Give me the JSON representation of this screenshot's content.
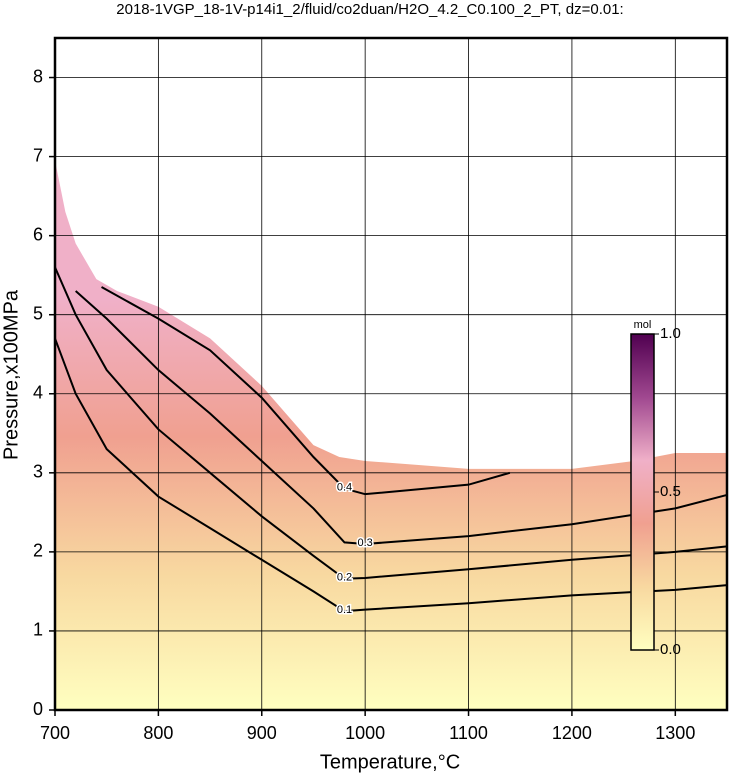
{
  "chart_data": {
    "type": "contour",
    "title": "2018-1VGP_18-1V-p14i1_2/fluid/co2duan/H2O_4.2_C0.100_2_PT, dz=0.01:",
    "x_label": "Temperature,°C",
    "y_label": "Pressure,x100MPa",
    "xlim": [
      700,
      1350
    ],
    "ylim": [
      0,
      8.5
    ],
    "xticks": [
      700,
      800,
      900,
      1000,
      1100,
      1200,
      1300
    ],
    "yticks": [
      0,
      1,
      2,
      3,
      4,
      5,
      6,
      7,
      8
    ],
    "grid": true,
    "boundary": {
      "x": [
        700,
        710,
        720,
        740,
        760,
        800,
        850,
        900,
        950,
        975,
        1000,
        1050,
        1100,
        1200,
        1260,
        1300,
        1350
      ],
      "y": [
        6.95,
        6.3,
        5.9,
        5.45,
        5.3,
        5.1,
        4.7,
        4.1,
        3.35,
        3.2,
        3.15,
        3.1,
        3.05,
        3.05,
        3.15,
        3.25,
        3.25
      ]
    },
    "contours": [
      {
        "level": 0.1,
        "x": [
          700,
          720,
          750,
          800,
          850,
          900,
          950,
          980,
          1000,
          1100,
          1200,
          1300,
          1350
        ],
        "y": [
          4.7,
          4.0,
          3.3,
          2.7,
          2.3,
          1.9,
          1.5,
          1.25,
          1.27,
          1.35,
          1.45,
          1.52,
          1.58
        ]
      },
      {
        "level": 0.2,
        "x": [
          700,
          720,
          750,
          800,
          850,
          900,
          950,
          980,
          1000,
          1100,
          1200,
          1300,
          1350
        ],
        "y": [
          5.6,
          5.0,
          4.3,
          3.55,
          3.0,
          2.45,
          1.95,
          1.66,
          1.67,
          1.78,
          1.9,
          2.0,
          2.07
        ]
      },
      {
        "level": 0.3,
        "x": [
          720,
          750,
          800,
          850,
          900,
          950,
          980,
          1000,
          1100,
          1200,
          1300,
          1350
        ],
        "y": [
          5.3,
          4.95,
          4.3,
          3.75,
          3.15,
          2.55,
          2.12,
          2.1,
          2.2,
          2.35,
          2.55,
          2.72
        ]
      },
      {
        "level": 0.4,
        "x": [
          745,
          800,
          850,
          900,
          950,
          980,
          1000,
          1100,
          1140
        ],
        "y": [
          5.35,
          4.95,
          4.55,
          3.95,
          3.2,
          2.8,
          2.73,
          2.85,
          3.0
        ]
      }
    ],
    "colorbar": {
      "label": "mol",
      "lim": [
        0,
        1
      ],
      "ticks": [
        {
          "value": 0,
          "label": "0.0"
        },
        {
          "value": 0.5,
          "label": "0.5"
        },
        {
          "value": 1,
          "label": "1.0"
        }
      ],
      "colormap": [
        "#ffffc0",
        "#f8d8a0",
        "#f0a090",
        "#f0b0c8",
        "#a04890",
        "#500050"
      ]
    }
  }
}
